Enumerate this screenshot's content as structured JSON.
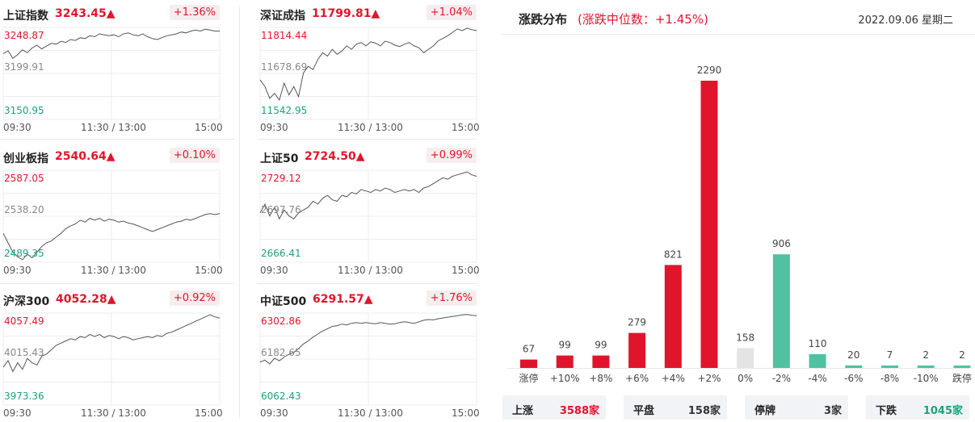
{
  "time_labels": [
    "09:30",
    "11:30 / 13:00",
    "15:00"
  ],
  "colors": {
    "up": "#e0152c",
    "down": "#1aa37a",
    "flat": "#e4e4e4",
    "down_bar": "#4fc2a0",
    "line": "#555555"
  },
  "indices": [
    {
      "name": "上证指数",
      "price": "3243.45",
      "arrow": "▲",
      "pct": "+1.36%",
      "y_top": "3248.87",
      "y_mid": "3199.91",
      "y_bot": "3150.95",
      "ymin": 3150.95,
      "ymax": 3248.87,
      "series": [
        3221,
        3224,
        3216,
        3220,
        3225,
        3222,
        3227,
        3230,
        3226,
        3229,
        3232,
        3231,
        3234,
        3233,
        3236,
        3235,
        3238,
        3237,
        3240,
        3239,
        3242,
        3241,
        3240,
        3241,
        3239,
        3242,
        3243,
        3241,
        3240,
        3242,
        3239,
        3237,
        3236,
        3238,
        3240,
        3241,
        3242,
        3244,
        3243,
        3245,
        3246,
        3245,
        3247,
        3246,
        3245,
        3245
      ]
    },
    {
      "name": "深证成指",
      "price": "11799.81",
      "arrow": "▲",
      "pct": "+1.04%",
      "y_top": "11814.44",
      "y_mid": "11678.69",
      "y_bot": "11542.95",
      "ymin": 11542.95,
      "ymax": 11814.44,
      "series": [
        11660,
        11640,
        11605,
        11620,
        11600,
        11650,
        11615,
        11640,
        11610,
        11680,
        11700,
        11690,
        11720,
        11740,
        11730,
        11750,
        11735,
        11745,
        11760,
        11750,
        11765,
        11770,
        11760,
        11772,
        11768,
        11760,
        11774,
        11770,
        11762,
        11758,
        11765,
        11770,
        11760,
        11755,
        11740,
        11750,
        11760,
        11775,
        11782,
        11790,
        11800,
        11810,
        11805,
        11812,
        11808,
        11805
      ]
    },
    {
      "name": "创业板指",
      "price": "2540.64",
      "arrow": "▲",
      "pct": "+0.10%",
      "y_top": "2587.05",
      "y_mid": "2538.20",
      "y_bot": "2489.35",
      "ymin": 2489.35,
      "ymax": 2587.05,
      "series": [
        2520,
        2510,
        2500,
        2495,
        2492,
        2498,
        2494,
        2500,
        2506,
        2510,
        2512,
        2516,
        2520,
        2525,
        2528,
        2530,
        2534,
        2532,
        2536,
        2534,
        2536,
        2533,
        2535,
        2534,
        2532,
        2533,
        2531,
        2530,
        2528,
        2526,
        2524,
        2522,
        2524,
        2526,
        2528,
        2530,
        2532,
        2533,
        2535,
        2534,
        2536,
        2538,
        2540,
        2541,
        2540,
        2541
      ]
    },
    {
      "name": "上证50",
      "price": "2724.50",
      "arrow": "▲",
      "pct": "+0.99%",
      "y_top": "2729.12",
      "y_mid": "2697.76",
      "y_bot": "2666.41",
      "ymin": 2666.41,
      "ymax": 2729.12,
      "series": [
        2700,
        2706,
        2698,
        2704,
        2696,
        2702,
        2698,
        2696,
        2700,
        2702,
        2704,
        2708,
        2706,
        2710,
        2712,
        2709,
        2708,
        2712,
        2711,
        2714,
        2713,
        2716,
        2715,
        2714,
        2716,
        2715,
        2717,
        2716,
        2714,
        2715,
        2716,
        2715,
        2716,
        2714,
        2717,
        2718,
        2720,
        2722,
        2724,
        2723,
        2725,
        2726,
        2727,
        2728,
        2726,
        2725
      ]
    },
    {
      "name": "沪深300",
      "price": "4052.28",
      "arrow": "▲",
      "pct": "+0.92%",
      "y_top": "4057.49",
      "y_mid": "4015.43",
      "y_bot": "3973.36",
      "ymin": 3973.36,
      "ymax": 4057.49,
      "series": [
        4008,
        4014,
        4004,
        4012,
        4006,
        4016,
        4012,
        4010,
        4018,
        4020,
        4024,
        4028,
        4030,
        4032,
        4034,
        4033,
        4036,
        4035,
        4038,
        4036,
        4038,
        4035,
        4037,
        4036,
        4034,
        4036,
        4035,
        4033,
        4034,
        4035,
        4036,
        4035,
        4037,
        4036,
        4039,
        4040,
        4042,
        4044,
        4046,
        4048,
        4050,
        4052,
        4054,
        4056,
        4054,
        4053
      ]
    },
    {
      "name": "中证500",
      "price": "6291.57",
      "arrow": "▲",
      "pct": "+1.76%",
      "y_top": "6302.86",
      "y_mid": "6182.65",
      "y_bot": "6062.43",
      "ymin": 6062.43,
      "ymax": 6302.86,
      "series": [
        6175,
        6180,
        6170,
        6185,
        6178,
        6188,
        6195,
        6200,
        6210,
        6222,
        6230,
        6240,
        6248,
        6256,
        6262,
        6268,
        6270,
        6274,
        6272,
        6276,
        6278,
        6276,
        6278,
        6276,
        6275,
        6278,
        6276,
        6274,
        6275,
        6278,
        6280,
        6278,
        6276,
        6280,
        6284,
        6286,
        6285,
        6288,
        6290,
        6292,
        6294,
        6296,
        6298,
        6299,
        6297,
        6296
      ]
    }
  ],
  "distribution": {
    "title": "涨跌分布",
    "median": "(涨跌中位数：+1.45%)",
    "date": "2022.09.06 星期二",
    "chart_data": {
      "type": "bar",
      "categories": [
        "涨停",
        "+10%",
        "+8%",
        "+6%",
        "+4%",
        "+2%",
        "0%",
        "-2%",
        "-4%",
        "-6%",
        "-8%",
        "-10%",
        "跌停"
      ],
      "values": [
        67,
        99,
        99,
        279,
        821,
        2290,
        158,
        906,
        110,
        20,
        7,
        2,
        2
      ],
      "value_labels": [
        "67",
        "99",
        "99",
        "279",
        "821",
        "2290",
        "158",
        "906",
        "110",
        "20",
        "7",
        "2",
        "2"
      ],
      "kinds": [
        "up",
        "up",
        "up",
        "up",
        "up",
        "up",
        "flat",
        "down",
        "down",
        "down",
        "down",
        "down",
        "down"
      ],
      "ylim": [
        0,
        2290
      ]
    },
    "summary": [
      {
        "label": "上涨",
        "value": "3588家",
        "kind": "up"
      },
      {
        "label": "平盘",
        "value": "158家",
        "kind": "flat"
      },
      {
        "label": "停牌",
        "value": "3家",
        "kind": "flat"
      },
      {
        "label": "下跌",
        "value": "1045家",
        "kind": "down"
      }
    ]
  }
}
